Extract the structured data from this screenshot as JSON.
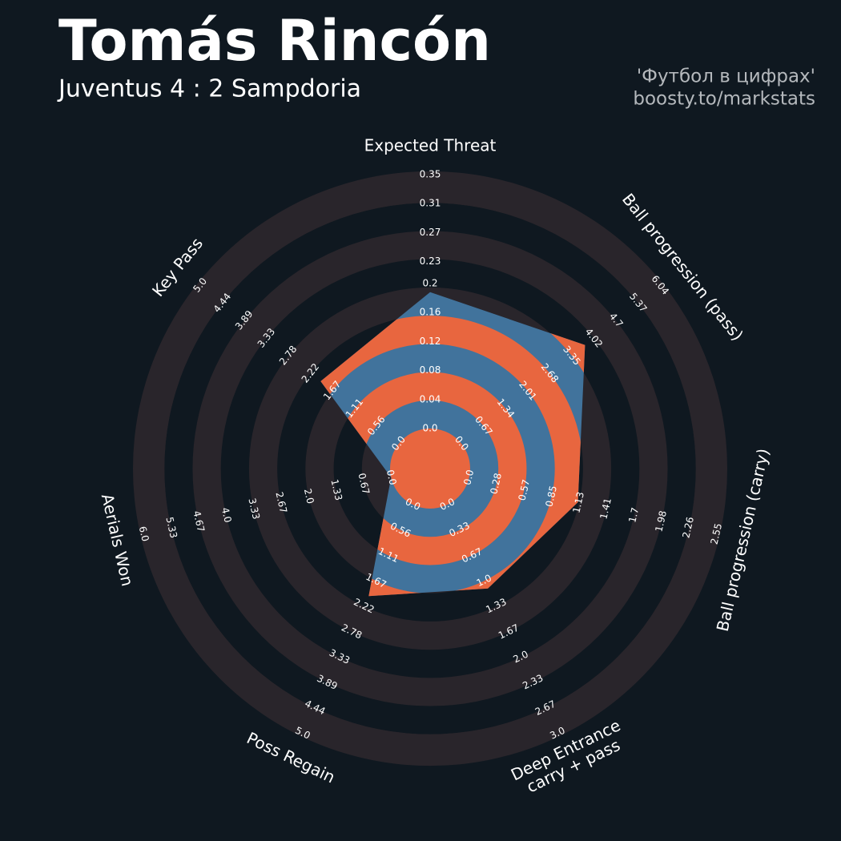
{
  "chart_data": {
    "type": "radar",
    "title": "Tomás Rincón",
    "subtitle": "Juventus 4 : 2 Sampdoria",
    "credits": [
      "'Футбол в цифрах'",
      "boosty.to/markstats"
    ],
    "categories": [
      "Expected Threat",
      "Ball progression (pass)",
      "Ball progression (carry)",
      "Deep Entrance\ncarry + pass",
      "Poss Regain",
      "Aerials Won",
      "Key Pass"
    ],
    "values": [
      0.188,
      3.76,
      1.12,
      1.1,
      2.0,
      0.0,
      1.97
    ],
    "ticks": [
      [
        {
          "value": 0,
          "label": "0.0"
        },
        0.04,
        0.08,
        0.12,
        0.16,
        0.2,
        0.23,
        0.27,
        0.31,
        0.35
      ],
      [
        {
          "value": 0,
          "label": "0.0"
        },
        0.67,
        1.34,
        2.01,
        2.68,
        3.35,
        4.02,
        4.7,
        5.37,
        6.04
      ],
      [
        {
          "value": 0,
          "label": "0.0"
        },
        0.28,
        0.57,
        0.85,
        1.13,
        1.41,
        1.7,
        1.98,
        2.26,
        2.55
      ],
      [
        {
          "value": 0,
          "label": "0.0"
        },
        0.33,
        0.67,
        {
          "value": 1,
          "label": "1.0"
        },
        1.33,
        1.67,
        {
          "value": 2,
          "label": "2.0"
        },
        2.33,
        2.67,
        {
          "value": 3,
          "label": "3.0"
        }
      ],
      [
        {
          "value": 0,
          "label": "0.0"
        },
        0.56,
        1.11,
        1.67,
        2.22,
        2.78,
        3.33,
        3.89,
        4.44,
        {
          "value": 5,
          "label": "5.0"
        }
      ],
      [
        {
          "value": 0,
          "label": "0.0"
        },
        0.67,
        1.33,
        {
          "value": 2,
          "label": "2.0"
        },
        2.67,
        3.33,
        {
          "value": 4,
          "label": "4.0"
        },
        4.67,
        5.33,
        {
          "value": 6,
          "label": "6.0"
        }
      ],
      [
        {
          "value": 0,
          "label": "0.0"
        },
        0.56,
        1.11,
        1.67,
        2.22,
        2.78,
        3.33,
        3.89,
        4.44,
        {
          "value": 5,
          "label": "5.0"
        }
      ]
    ],
    "color": "#41739c",
    "highlight_color": "#e8663f",
    "ring_color": "#29252b"
  }
}
